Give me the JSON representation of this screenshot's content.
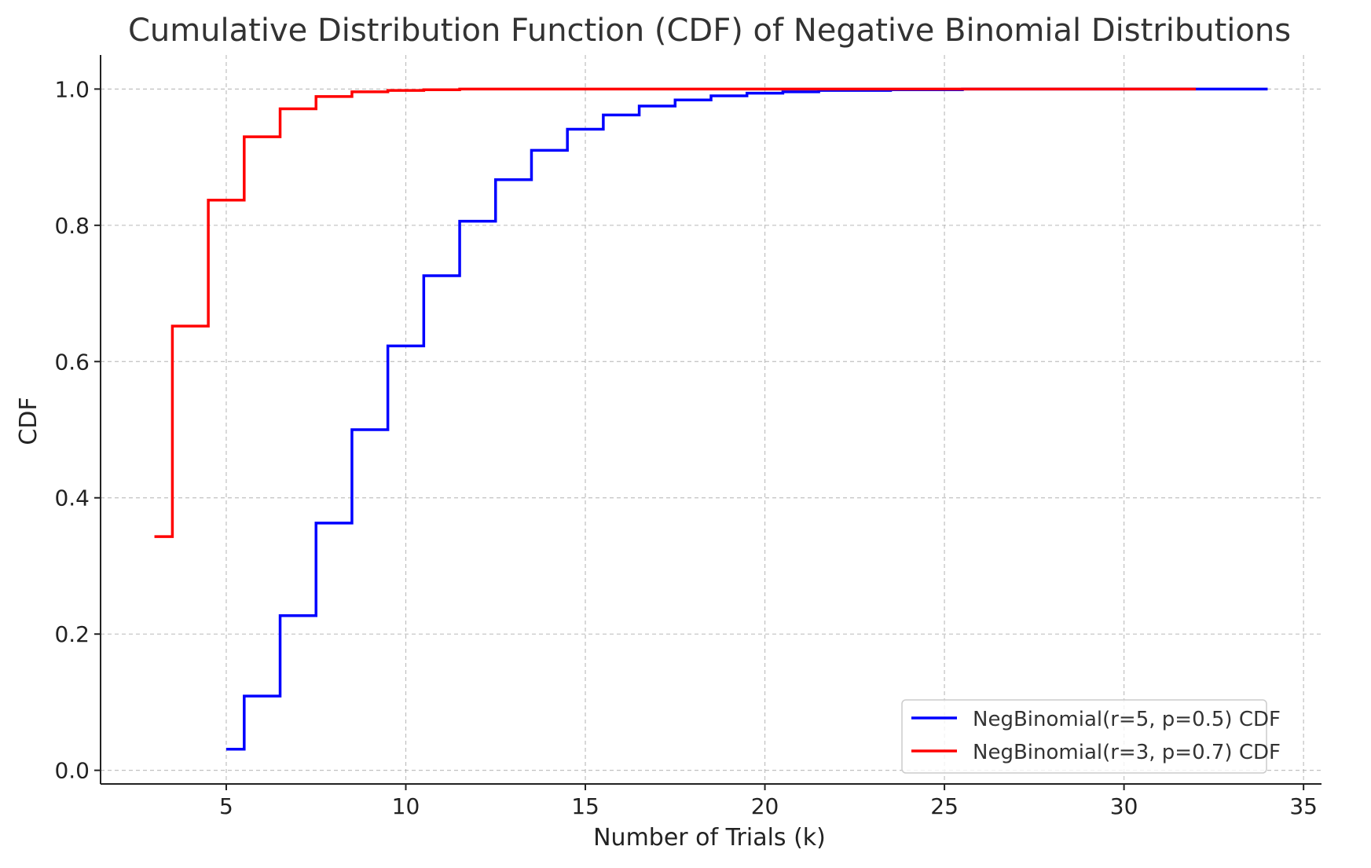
{
  "chart_data": {
    "type": "line",
    "step": "mid",
    "title": "Cumulative Distribution Function (CDF) of Negative Binomial Distributions",
    "xlabel": "Number of Trials (k)",
    "ylabel": "CDF",
    "xlim": [
      1.5,
      35.5
    ],
    "ylim": [
      -0.02,
      1.05
    ],
    "xticks": [
      5,
      10,
      15,
      20,
      25,
      30,
      35
    ],
    "yticks": [
      0.0,
      0.2,
      0.4,
      0.6,
      0.8,
      1.0
    ],
    "xtick_labels": [
      "5",
      "10",
      "15",
      "20",
      "25",
      "30",
      "35"
    ],
    "ytick_labels": [
      "0.0",
      "0.2",
      "0.4",
      "0.6",
      "0.8",
      "1.0"
    ],
    "grid": true,
    "legend_position": "lower-right",
    "series": [
      {
        "name": "NegBinomial(r=5, p=0.5) CDF",
        "color": "#0000ff",
        "x": [
          5,
          6,
          7,
          8,
          9,
          10,
          11,
          12,
          13,
          14,
          15,
          16,
          17,
          18,
          19,
          20,
          21,
          22,
          23,
          24,
          25,
          26,
          27,
          28,
          29,
          30,
          31,
          32,
          33,
          34
        ],
        "y": [
          0.031,
          0.109,
          0.227,
          0.363,
          0.5,
          0.623,
          0.726,
          0.806,
          0.867,
          0.91,
          0.941,
          0.962,
          0.975,
          0.984,
          0.99,
          0.994,
          0.996,
          0.998,
          0.998,
          0.999,
          0.999,
          1.0,
          1.0,
          1.0,
          1.0,
          1.0,
          1.0,
          1.0,
          1.0,
          1.0
        ]
      },
      {
        "name": "NegBinomial(r=3, p=0.7) CDF",
        "color": "#ff0000",
        "x": [
          3,
          4,
          5,
          6,
          7,
          8,
          9,
          10,
          11,
          12,
          13,
          14,
          15,
          16,
          17,
          18,
          19,
          20,
          21,
          22,
          23,
          24,
          25,
          26,
          27,
          28,
          29,
          30,
          31,
          32
        ],
        "y": [
          0.343,
          0.652,
          0.837,
          0.93,
          0.971,
          0.989,
          0.996,
          0.998,
          0.999,
          1.0,
          1.0,
          1.0,
          1.0,
          1.0,
          1.0,
          1.0,
          1.0,
          1.0,
          1.0,
          1.0,
          1.0,
          1.0,
          1.0,
          1.0,
          1.0,
          1.0,
          1.0,
          1.0,
          1.0,
          1.0
        ]
      }
    ]
  }
}
